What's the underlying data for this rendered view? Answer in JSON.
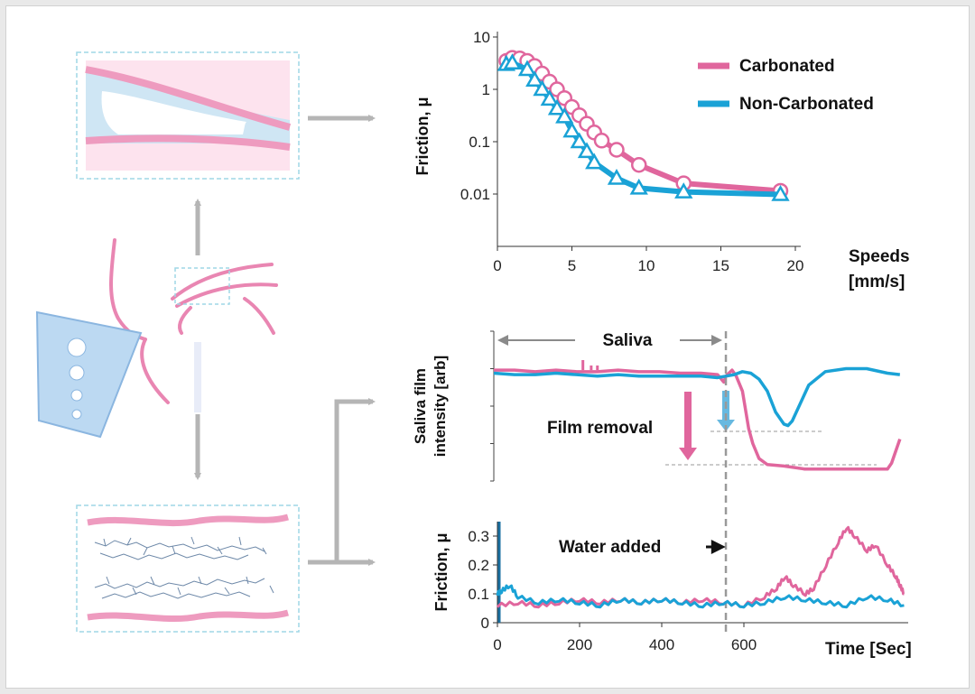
{
  "colors": {
    "carbonated": "#e0669d",
    "non_carbonated": "#1aa2d6",
    "arrow_grey": "#b5b5b5",
    "panel_border": "#9fd7e6",
    "dark_arrow": "#111111",
    "dashed": "#999999"
  },
  "chart_data": [
    {
      "type": "scatter",
      "title": "",
      "xlabel_line1": "Speeds",
      "xlabel_line2": "[mm/s]",
      "ylabel": "Friction, μ",
      "xlim": [
        0,
        20
      ],
      "ylim": [
        0.001,
        10
      ],
      "yscale": "log",
      "xticks": [
        0,
        5,
        10,
        15,
        20
      ],
      "yticks": [
        {
          "value": 10,
          "label": "10"
        },
        {
          "value": 1,
          "label": "1"
        },
        {
          "value": 0.1,
          "label": "0.1"
        },
        {
          "value": 0.01,
          "label": "0.01"
        }
      ],
      "legend": [
        "Carbonated",
        "Non-Carbonated"
      ],
      "series": [
        {
          "name": "Carbonated",
          "marker": "circle",
          "x": [
            0.6,
            1.0,
            1.5,
            2.0,
            2.5,
            3.0,
            3.5,
            4.0,
            4.5,
            5.0,
            5.5,
            6.0,
            6.5,
            7.0,
            8.0,
            9.5,
            12.5,
            19.0
          ],
          "y": [
            3.5,
            4.0,
            3.9,
            3.5,
            2.8,
            2.0,
            1.4,
            1.0,
            0.68,
            0.46,
            0.32,
            0.22,
            0.15,
            0.105,
            0.07,
            0.036,
            0.016,
            0.0115
          ]
        },
        {
          "name": "Non-Carbonated",
          "marker": "triangle",
          "x": [
            0.6,
            1.0,
            2.0,
            2.5,
            3.0,
            3.5,
            4.0,
            4.5,
            5.0,
            5.5,
            6.0,
            6.5,
            8.0,
            9.5,
            12.5,
            19.0
          ],
          "y": [
            3.0,
            3.2,
            2.4,
            1.5,
            1.0,
            0.65,
            0.43,
            0.3,
            0.16,
            0.1,
            0.065,
            0.04,
            0.02,
            0.013,
            0.011,
            0.0098
          ]
        }
      ]
    },
    {
      "type": "line",
      "ylabel_line1": "Saliva film",
      "ylabel_line2": "intensity [arb]",
      "xlim": [
        0,
        1000
      ],
      "ylim": [
        0,
        100
      ],
      "region_label": "Saliva",
      "region_end_x": 560,
      "annotation": "Film removal",
      "series": [
        {
          "name": "Carbonated",
          "x": [
            0,
            50,
            100,
            150,
            200,
            250,
            300,
            350,
            400,
            450,
            500,
            540,
            555,
            560,
            575,
            585,
            600,
            615,
            625,
            640,
            660,
            700,
            750,
            800,
            850,
            900,
            950,
            960,
            970,
            980
          ],
          "y": [
            74,
            74,
            73,
            74,
            73,
            73,
            74,
            73,
            73,
            72,
            72,
            71,
            66,
            70,
            74,
            70,
            60,
            35,
            25,
            15,
            11,
            10,
            8,
            8,
            8,
            8,
            8,
            12,
            20,
            28
          ]
        },
        {
          "name": "Non-Carbonated",
          "x": [
            0,
            50,
            100,
            150,
            200,
            250,
            300,
            350,
            400,
            450,
            500,
            540,
            560,
            580,
            600,
            620,
            640,
            660,
            680,
            700,
            710,
            720,
            740,
            760,
            800,
            850,
            900,
            950,
            980
          ],
          "y": [
            72,
            71,
            71,
            72,
            71,
            70,
            71,
            70,
            70,
            70,
            70,
            69,
            70,
            71,
            73,
            72,
            68,
            60,
            46,
            38,
            37,
            40,
            52,
            64,
            73,
            75,
            75,
            72,
            71
          ]
        }
      ]
    },
    {
      "type": "line",
      "ylabel": "Friction, μ",
      "xlabel": "Time [Sec]",
      "xlim": [
        0,
        1000
      ],
      "ylim": [
        0,
        0.35
      ],
      "xticks": [
        0,
        200,
        400,
        600
      ],
      "yticks": [
        {
          "value": 0,
          "label": "0"
        },
        {
          "value": 0.1,
          "label": "0.1"
        },
        {
          "value": 0.2,
          "label": "0.2"
        },
        {
          "value": 0.3,
          "label": "0.3"
        }
      ],
      "annotation": "Water added",
      "event_x": 560,
      "series": [
        {
          "name": "Carbonated",
          "x": [
            0,
            50,
            100,
            150,
            200,
            250,
            300,
            350,
            400,
            450,
            500,
            550,
            600,
            650,
            680,
            700,
            720,
            750,
            770,
            800,
            830,
            850,
            870,
            900,
            920,
            950,
            970,
            980,
            990
          ],
          "y": [
            0.06,
            0.07,
            0.06,
            0.07,
            0.08,
            0.07,
            0.08,
            0.07,
            0.08,
            0.07,
            0.08,
            0.07,
            0.06,
            0.09,
            0.12,
            0.16,
            0.13,
            0.1,
            0.12,
            0.2,
            0.28,
            0.33,
            0.3,
            0.25,
            0.27,
            0.2,
            0.16,
            0.13,
            0.1
          ]
        },
        {
          "name": "Non-Carbonated",
          "x": [
            0,
            10,
            30,
            50,
            100,
            150,
            200,
            250,
            300,
            350,
            400,
            450,
            500,
            550,
            600,
            650,
            700,
            750,
            800,
            850,
            900,
            950,
            990
          ],
          "y": [
            0.1,
            0.11,
            0.13,
            0.09,
            0.07,
            0.08,
            0.07,
            0.06,
            0.08,
            0.07,
            0.08,
            0.07,
            0.06,
            0.07,
            0.06,
            0.07,
            0.09,
            0.08,
            0.07,
            0.06,
            0.09,
            0.08,
            0.06
          ]
        }
      ]
    }
  ]
}
